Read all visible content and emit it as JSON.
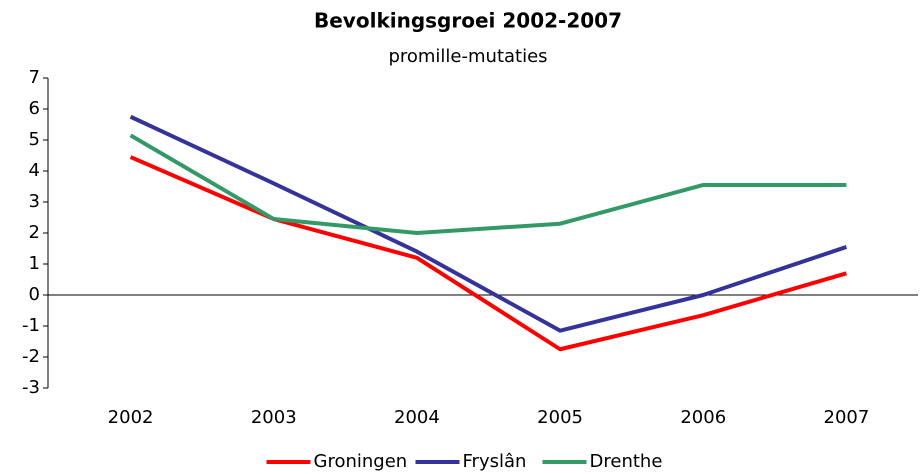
{
  "chart_data": {
    "type": "line",
    "title": "Bevolkingsgroei 2002-2007",
    "subtitle": "promille-mutaties",
    "categories": [
      "2002",
      "2003",
      "2004",
      "2005",
      "2006",
      "2007"
    ],
    "series": [
      {
        "name": "Groningen",
        "color": "#ff0000",
        "values": [
          4.45,
          2.45,
          1.2,
          -1.75,
          -0.65,
          0.7
        ]
      },
      {
        "name": "Fryslân",
        "color": "#333399",
        "values": [
          5.75,
          3.6,
          1.4,
          -1.15,
          0,
          1.55
        ]
      },
      {
        "name": "Drenthe",
        "color": "#339966",
        "values": [
          5.15,
          2.45,
          2.0,
          2.3,
          3.55,
          3.55
        ]
      }
    ],
    "ylim": [
      -3,
      7
    ],
    "yticks": [
      -3,
      -2,
      -1,
      0,
      1,
      2,
      3,
      4,
      5,
      6,
      7
    ],
    "grid": false,
    "legend": "bottom"
  }
}
